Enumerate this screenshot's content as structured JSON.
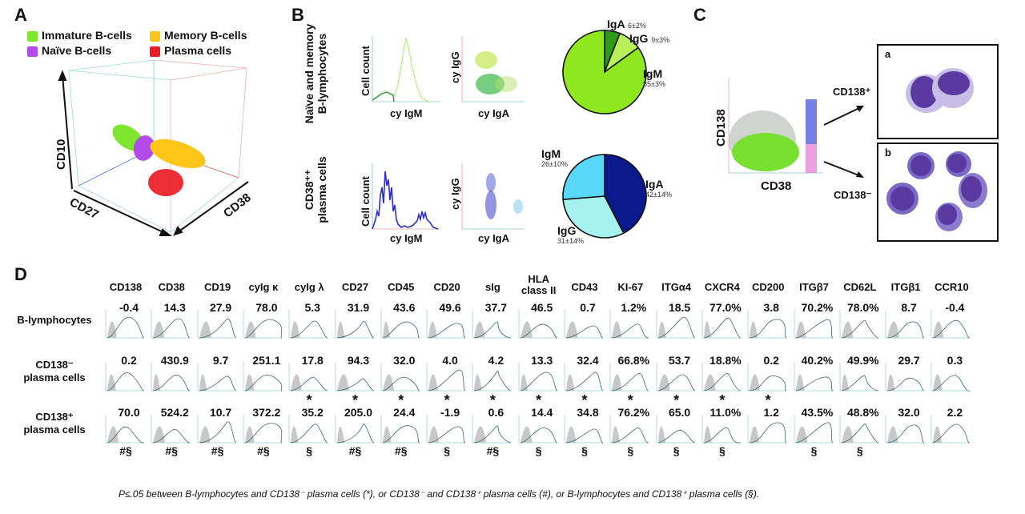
{
  "panels": {
    "A": {
      "letter": "A",
      "legend": [
        {
          "label": "Immature B-cells",
          "color": "#7ee62e"
        },
        {
          "label": "Naïve B-cells",
          "color": "#b24be8"
        },
        {
          "label": "Memory B-cells",
          "color": "#ffc61a"
        },
        {
          "label": "Plasma cells",
          "color": "#ec1c24"
        }
      ],
      "axes": {
        "vertical": "CD10",
        "left": "CD27",
        "right": "CD38"
      }
    },
    "B": {
      "letter": "B",
      "rows": [
        {
          "label_line1": "Naïve and memory",
          "label_line2": "B-lymphocytes",
          "hist_ylabel": "Cell count",
          "hist_xlabel": "cy IgM",
          "scatter_ylabel": "cy IgG",
          "scatter_xlabel": "cy IgA"
        },
        {
          "label_line1": "CD38⁺⁺",
          "label_line2": "plasma cells",
          "hist_ylabel": "Cell count",
          "hist_xlabel": "cy IgM",
          "scatter_ylabel": "cy IgG",
          "scatter_xlabel": "cy IgA"
        }
      ]
    },
    "C": {
      "letter": "C",
      "ylabel": "CD138",
      "xlabel": "CD38",
      "pos_label": "CD138⁺",
      "neg_label": "CD138⁻",
      "micro_a": "a",
      "micro_b": "b"
    },
    "D": {
      "letter": "D",
      "columns": [
        "CD138",
        "CD38",
        "CD19",
        "cyIg κ",
        "cyIg λ",
        "CD27",
        "CD45",
        "CD20",
        "sIg",
        "HLA class II",
        "CD43",
        "KI-67",
        "ITGα4",
        "CXCR4",
        "CD200",
        "ITGβ7",
        "CD62L",
        "ITGβ1",
        "CCR10"
      ],
      "column_lines": [
        [
          "CD138"
        ],
        [
          "CD38"
        ],
        [
          "CD19"
        ],
        [
          "cyIg κ"
        ],
        [
          "cyIg λ"
        ],
        [
          "CD27"
        ],
        [
          "CD45"
        ],
        [
          "CD20"
        ],
        [
          "sIg"
        ],
        [
          "HLA",
          "class II"
        ],
        [
          "CD43"
        ],
        [
          "KI-67"
        ],
        [
          "ITGα4"
        ],
        [
          "CXCR4"
        ],
        [
          "CD200"
        ],
        [
          "ITGβ7"
        ],
        [
          "CD62L"
        ],
        [
          "ITGβ1"
        ],
        [
          "CCR10"
        ]
      ],
      "rows": [
        {
          "label_line1": "B-lymphocytes",
          "label_line2": "",
          "values": [
            "-0.4",
            "14.3",
            "27.9",
            "78.0",
            "5.3",
            "31.9",
            "43.6",
            "49.6",
            "37.7",
            "46.5",
            "0.7",
            "1.2%",
            "18.5",
            "77.0%",
            "3.8",
            "70.2%",
            "78.0%",
            "8.7",
            "-0.4"
          ],
          "markers": [
            "",
            "",
            "",
            "",
            "",
            "",
            "",
            "",
            "",
            "",
            "",
            "",
            "",
            "",
            "",
            "",
            "",
            "",
            ""
          ]
        },
        {
          "label_line1": "CD138⁻",
          "label_line2": "plasma cells",
          "values": [
            "0.2",
            "430.9",
            "9.7",
            "251.1",
            "17.8",
            "94.3",
            "32.0",
            "4.0",
            "4.2",
            "13.3",
            "32.4",
            "66.8%",
            "53.7",
            "18.8%",
            "0.2",
            "40.2%",
            "49.9%",
            "29.7",
            "0.3"
          ],
          "markers": [
            "",
            "",
            "",
            "",
            "*",
            "*",
            "*",
            "*",
            "*",
            "*",
            "*",
            "*",
            "*",
            "*",
            "*",
            "",
            "",
            "",
            ""
          ]
        },
        {
          "label_line1": "CD138⁺",
          "label_line2": "plasma cells",
          "values": [
            "70.0",
            "524.2",
            "10.7",
            "372.2",
            "35.2",
            "205.0",
            "24.4",
            "-1.9",
            "0.6",
            "14.4",
            "34.8",
            "76.2%",
            "65.0",
            "11.0%",
            "1.2",
            "43.5%",
            "48.8%",
            "32.0",
            "2.2"
          ],
          "markers": [
            "#§",
            "#§",
            "#§",
            "#§",
            "§",
            "#§",
            "#§",
            "§",
            "#§",
            "§",
            "§",
            "§",
            "§",
            "§",
            "",
            "§",
            "§",
            "",
            ""
          ]
        }
      ],
      "footnote": "P≤.05 between B-lymphocytes and CD138⁻ plasma cells (*), or CD138⁻ and CD138⁺ plasma cells (#), or B-lymphocytes and CD138⁺ plasma cells (§)."
    }
  },
  "chart_data": [
    {
      "type": "pie",
      "title": "Naïve and memory B-lymphocytes – cytoplasmic Ig isotype",
      "categories": [
        "IgA",
        "IgG",
        "IgM"
      ],
      "values": [
        6,
        9,
        85
      ],
      "labels": [
        "6±2%",
        "9±3%",
        "85±3%"
      ],
      "colors": [
        "#2f9a1a",
        "#b8f05a",
        "#8fe81e"
      ]
    },
    {
      "type": "pie",
      "title": "CD38⁺⁺ plasma cells – cytoplasmic Ig isotype",
      "categories": [
        "IgA",
        "IgG",
        "IgM"
      ],
      "values": [
        42,
        31,
        26
      ],
      "labels": [
        "42±14%",
        "31±14%",
        "26±10%"
      ],
      "colors": [
        "#0a1a8c",
        "#a6f2ee",
        "#5ad8f8"
      ]
    },
    {
      "type": "table",
      "title": "Panel D – marker expression (MFI / % positive)",
      "columns": [
        "CD138",
        "CD38",
        "CD19",
        "cyIg κ",
        "cyIg λ",
        "CD27",
        "CD45",
        "CD20",
        "sIg",
        "HLA class II",
        "CD43",
        "KI-67",
        "ITGα4",
        "CXCR4",
        "CD200",
        "ITGβ7",
        "CD62L",
        "ITGβ1",
        "CCR10"
      ],
      "series": [
        {
          "name": "B-lymphocytes",
          "values": [
            -0.4,
            14.3,
            27.9,
            78.0,
            5.3,
            31.9,
            43.6,
            49.6,
            37.7,
            46.5,
            0.7,
            1.2,
            18.5,
            77.0,
            3.8,
            70.2,
            78.0,
            8.7,
            -0.4
          ]
        },
        {
          "name": "CD138- plasma cells",
          "values": [
            0.2,
            430.9,
            9.7,
            251.1,
            17.8,
            94.3,
            32.0,
            4.0,
            4.2,
            13.3,
            32.4,
            66.8,
            53.7,
            18.8,
            0.2,
            40.2,
            49.9,
            29.7,
            0.3
          ]
        },
        {
          "name": "CD138+ plasma cells",
          "values": [
            70.0,
            524.2,
            10.7,
            372.2,
            35.2,
            205.0,
            24.4,
            -1.9,
            0.6,
            14.4,
            34.8,
            76.2,
            65.0,
            11.0,
            1.2,
            43.5,
            48.8,
            32.0,
            2.2
          ]
        }
      ],
      "percent_columns": [
        "KI-67",
        "CXCR4",
        "ITGβ7",
        "CD62L"
      ]
    }
  ]
}
